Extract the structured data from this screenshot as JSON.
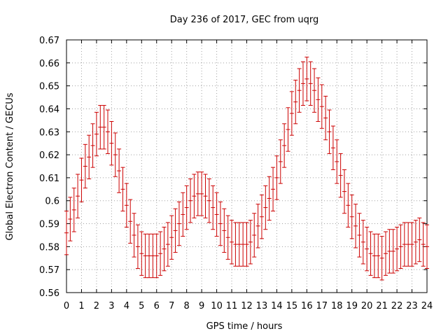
{
  "chart_data": {
    "type": "scatter",
    "title": "Day 236 of 2017, GEC from uqrg",
    "xlabel": "GPS time / hours",
    "ylabel": "Global Electron Content / GECUs",
    "xlim": [
      0,
      24
    ],
    "ylim": [
      0.56,
      0.67
    ],
    "xticks": [
      "0",
      "1",
      "2",
      "3",
      "4",
      "5",
      "6",
      "7",
      "8",
      "9",
      "10",
      "11",
      "12",
      "13",
      "14",
      "15",
      "16",
      "17",
      "18",
      "19",
      "20",
      "21",
      "22",
      "23",
      "24"
    ],
    "yticks": [
      "0.56",
      "0.57",
      "0.58",
      "0.59",
      "0.6",
      "0.61",
      "0.62",
      "0.63",
      "0.64",
      "0.65",
      "0.66",
      "0.67"
    ],
    "grid": true,
    "marker_color": "#cc0000",
    "error": 0.0095,
    "series": [
      {
        "x": [
          0.0,
          0.25,
          0.5,
          0.75,
          1.0,
          1.25,
          1.5,
          1.75,
          2.0,
          2.25,
          2.5,
          2.75,
          3.0,
          3.25,
          3.5,
          3.75,
          4.0,
          4.25,
          4.5,
          4.75,
          5.0,
          5.25,
          5.5,
          5.75,
          6.0,
          6.25,
          6.5,
          6.75,
          7.0,
          7.25,
          7.5,
          7.75,
          8.0,
          8.25,
          8.5,
          8.75,
          9.0,
          9.25,
          9.5,
          9.75,
          10.0,
          10.25,
          10.5,
          10.75,
          11.0,
          11.25,
          11.5,
          11.75,
          12.0,
          12.25,
          12.5,
          12.75,
          13.0,
          13.25,
          13.5,
          13.75,
          14.0,
          14.25,
          14.5,
          14.75,
          15.0,
          15.25,
          15.5,
          15.75,
          16.0,
          16.25,
          16.5,
          16.75,
          17.0,
          17.25,
          17.5,
          17.75,
          18.0,
          18.25,
          18.5,
          18.75,
          19.0,
          19.25,
          19.5,
          19.75,
          20.0,
          20.25,
          20.5,
          20.75,
          21.0,
          21.25,
          21.5,
          21.75,
          22.0,
          22.25,
          22.5,
          22.75,
          23.0,
          23.25,
          23.5,
          23.75,
          24.0
        ],
        "y": [
          0.586,
          0.592,
          0.596,
          0.602,
          0.609,
          0.615,
          0.619,
          0.624,
          0.629,
          0.632,
          0.632,
          0.63,
          0.625,
          0.62,
          0.613,
          0.605,
          0.598,
          0.591,
          0.585,
          0.58,
          0.577,
          0.576,
          0.576,
          0.576,
          0.576,
          0.577,
          0.579,
          0.581,
          0.584,
          0.587,
          0.59,
          0.594,
          0.597,
          0.6,
          0.602,
          0.603,
          0.603,
          0.602,
          0.6,
          0.597,
          0.594,
          0.59,
          0.587,
          0.584,
          0.582,
          0.581,
          0.581,
          0.581,
          0.581,
          0.582,
          0.585,
          0.589,
          0.593,
          0.597,
          0.601,
          0.605,
          0.61,
          0.617,
          0.624,
          0.631,
          0.638,
          0.643,
          0.648,
          0.651,
          0.653,
          0.651,
          0.648,
          0.644,
          0.641,
          0.636,
          0.63,
          0.623,
          0.617,
          0.611,
          0.604,
          0.598,
          0.593,
          0.589,
          0.585,
          0.582,
          0.579,
          0.577,
          0.576,
          0.576,
          0.575,
          0.577,
          0.578,
          0.578,
          0.579,
          0.58,
          0.581,
          0.581,
          0.581,
          0.582,
          0.583,
          0.581,
          0.58
        ]
      }
    ]
  }
}
